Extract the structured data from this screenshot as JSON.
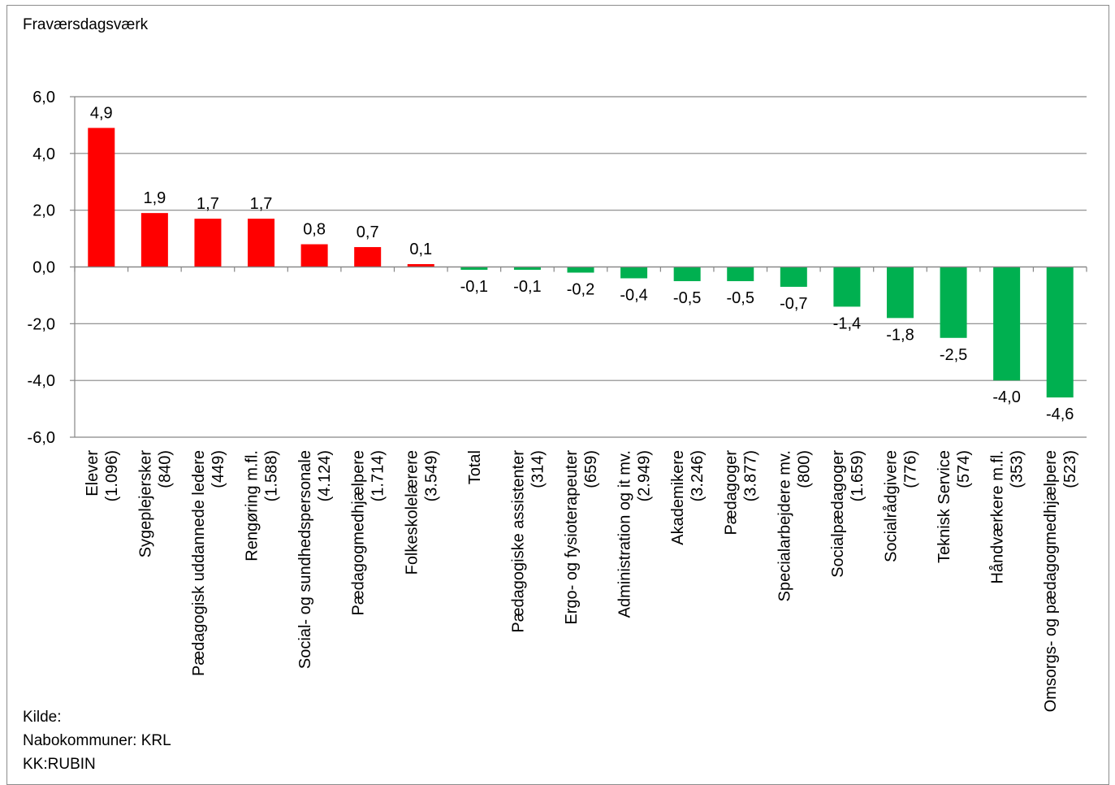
{
  "chart_data": {
    "type": "bar",
    "ylabel": "Fraværsdagsværk",
    "ylim": [
      -6,
      6
    ],
    "yticks": [
      6,
      4,
      2,
      0,
      -2,
      -4,
      -6
    ],
    "ytick_labels": [
      "6,0",
      "4,0",
      "2,0",
      "0,0",
      "-2,0",
      "-4,0",
      "-6,0"
    ],
    "grid": true,
    "categories": [
      [
        "Elever",
        "(1.096)"
      ],
      [
        "Sygeplejersker",
        "(840)"
      ],
      [
        "Pædagogisk uddannede ledere",
        "(449)"
      ],
      [
        "Rengøring m.fl.",
        "(1.588)"
      ],
      [
        "Social- og sundhedspersonale",
        "(4.124)"
      ],
      [
        "Pædagogmedhjælpere",
        "(1.714)"
      ],
      [
        "Folkeskolelærere",
        "(3.549)"
      ],
      [
        "Total"
      ],
      [
        "Pædagogiske assistenter",
        "(314)"
      ],
      [
        "Ergo- og fysioterapeuter",
        "(659)"
      ],
      [
        "Administration og it mv.",
        "(2.949)"
      ],
      [
        "Akademikere",
        "(3.246)"
      ],
      [
        "Pædagoger",
        "(3.877)"
      ],
      [
        "Specialarbejdere mv.",
        "(800)"
      ],
      [
        "Socialpædagoger",
        "(1.659)"
      ],
      [
        "Socialrådgivere",
        "(776)"
      ],
      [
        "Teknisk Service",
        "(574)"
      ],
      [
        "Håndværkere m.fl.",
        "(353)"
      ],
      [
        "Omsorgs- og pædagogmedhjælpere",
        "(523)"
      ]
    ],
    "values": [
      4.9,
      1.9,
      1.7,
      1.7,
      0.8,
      0.7,
      0.1,
      -0.1,
      -0.1,
      -0.2,
      -0.4,
      -0.5,
      -0.5,
      -0.7,
      -1.4,
      -1.8,
      -2.5,
      -4.0,
      -4.6
    ],
    "value_labels": [
      "4,9",
      "1,9",
      "1,7",
      "1,7",
      "0,8",
      "0,7",
      "0,1",
      "-0,1",
      "-0,1",
      "-0,2",
      "-0,4",
      "-0,5",
      "-0,5",
      "-0,7",
      "-1,4",
      "-1,8",
      "-2,5",
      "-4,0",
      "-4,6"
    ],
    "colors": {
      "positive": "#ff0000",
      "negative": "#00b050",
      "grid": "#868686",
      "axis": "#868686"
    }
  },
  "source": {
    "line1": "Kilde:",
    "line2": "Nabokommuner: KRL",
    "line3": "KK:RUBIN"
  }
}
